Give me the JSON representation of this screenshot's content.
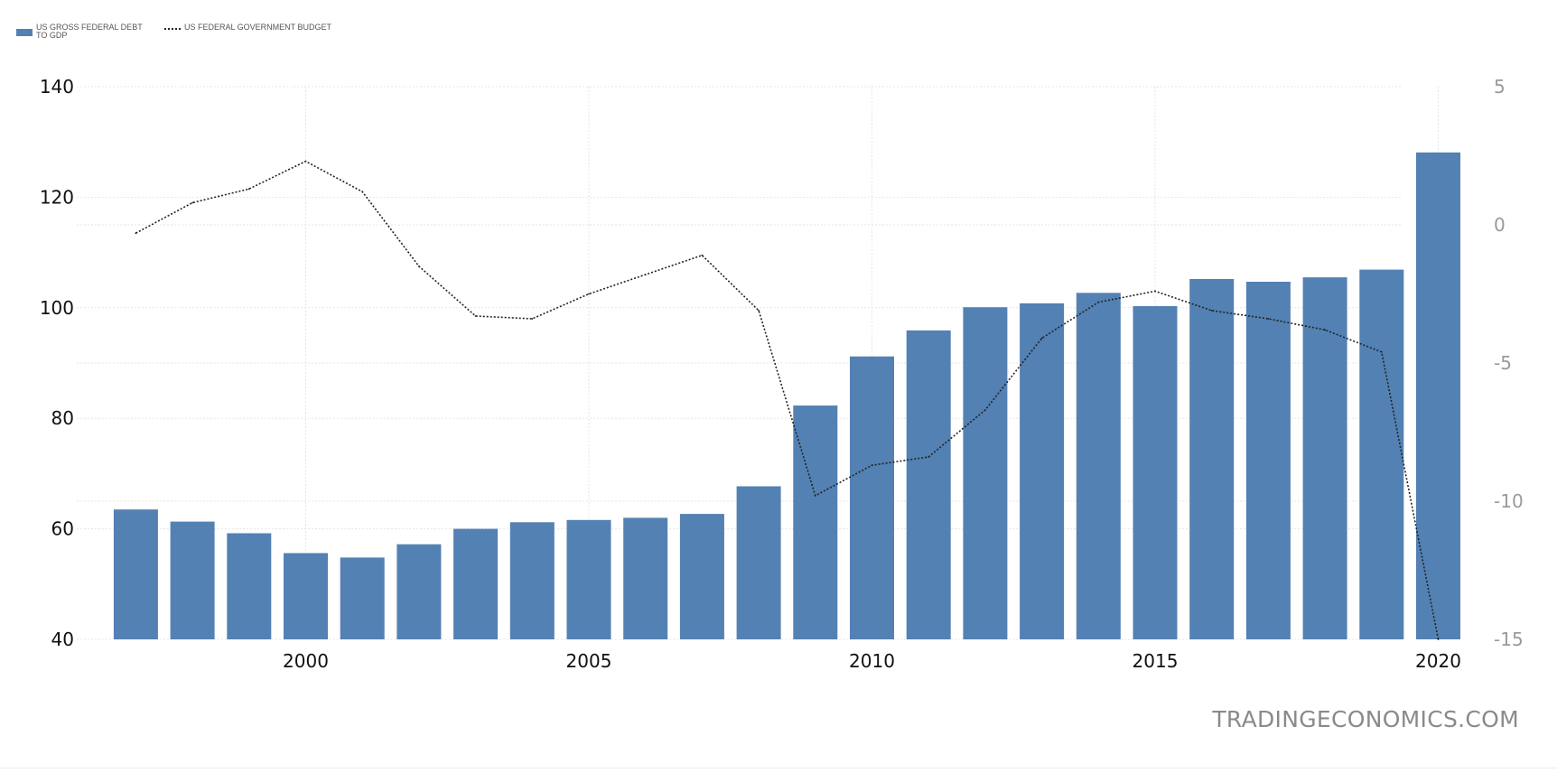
{
  "legend": {
    "debt_label": "US GROSS FEDERAL DEBT TO GDP",
    "budget_label": "US FEDERAL GOVERNMENT BUDGET"
  },
  "watermark": "TRADINGECONOMICS.COM",
  "colors": {
    "bar": "#5381b3",
    "line": "#222222",
    "left_tick_text": "#111111",
    "right_tick_text": "#9a9a9a",
    "grid": "#e6e6e6"
  },
  "chart_data": {
    "type": "bar",
    "years": [
      1997,
      1998,
      1999,
      2000,
      2001,
      2002,
      2003,
      2004,
      2005,
      2006,
      2007,
      2008,
      2009,
      2010,
      2011,
      2012,
      2013,
      2014,
      2015,
      2016,
      2017,
      2018,
      2019,
      2020
    ],
    "series": [
      {
        "name": "US GROSS FEDERAL DEBT TO GDP",
        "type": "bar",
        "axis": "left",
        "values": [
          63.5,
          61.3,
          59.2,
          55.6,
          54.8,
          57.2,
          60.0,
          61.2,
          61.6,
          62.0,
          62.7,
          67.7,
          82.3,
          91.2,
          95.9,
          100.1,
          100.8,
          102.7,
          100.3,
          105.2,
          104.7,
          105.5,
          106.9,
          128.1
        ]
      },
      {
        "name": "US FEDERAL GOVERNMENT BUDGET",
        "type": "line",
        "axis": "right",
        "values": [
          -0.3,
          0.8,
          1.3,
          2.3,
          1.2,
          -1.5,
          -3.3,
          -3.4,
          -2.5,
          -1.8,
          -1.1,
          -3.1,
          -9.8,
          -8.7,
          -8.4,
          -6.7,
          -4.1,
          -2.8,
          -2.4,
          -3.1,
          -3.4,
          -3.8,
          -4.6,
          -15.0
        ]
      }
    ],
    "y_left": {
      "min": 40,
      "max": 140,
      "ticks": [
        40,
        60,
        80,
        100,
        120,
        140
      ]
    },
    "y_right": {
      "min": -15,
      "max": 5,
      "ticks": [
        -15,
        -10,
        -5,
        0,
        5
      ]
    },
    "x_ticks": [
      2000,
      2005,
      2010,
      2015,
      2020
    ],
    "legend_position": "top-left",
    "grid": true
  }
}
